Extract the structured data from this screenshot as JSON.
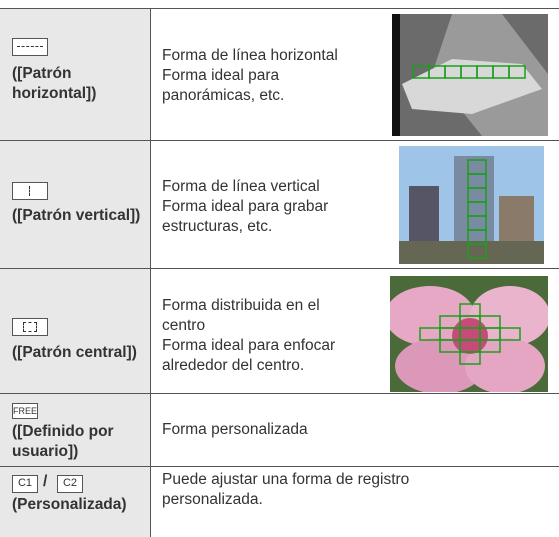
{
  "rows": [
    {
      "name": [
        "([Patrón",
        "horizontal])"
      ],
      "description": [
        "Forma de línea horizontal",
        "Forma ideal para",
        "panorámicas, etc."
      ]
    },
    {
      "name": [
        "([Patrón vertical])"
      ],
      "description": [
        "Forma de línea vertical",
        "Forma ideal para grabar",
        "estructuras, etc."
      ]
    },
    {
      "name": [
        "([Patrón central])"
      ],
      "description": [
        "Forma distribuida en el",
        "centro",
        "Forma ideal para enfocar",
        "alrededor del centro."
      ]
    },
    {
      "icon": [
        "FREE"
      ],
      "name": [
        "([Definido por",
        "usuario])"
      ],
      "description": [
        "Forma personalizada"
      ]
    },
    {
      "icon": [
        "C1",
        "/",
        "C2"
      ],
      "name": [
        "(Personalizada)"
      ],
      "description": [
        "Puede ajustar una forma de registro",
        "personalizada."
      ]
    }
  ]
}
